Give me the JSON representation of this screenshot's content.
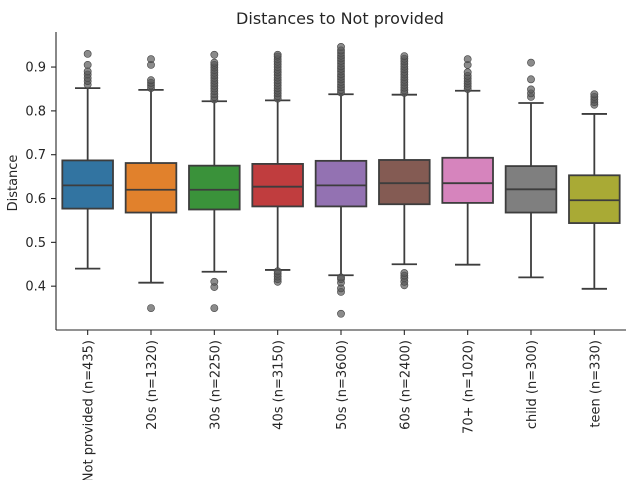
{
  "chart_data": {
    "type": "box",
    "title": "Distances to Not provided",
    "xlabel": "",
    "ylabel": "Distance",
    "ylim": [
      0.3,
      0.98
    ],
    "yticks": [
      0.4,
      0.5,
      0.6,
      0.7,
      0.8,
      0.9
    ],
    "grid": false,
    "categories": [
      "Not provided (n=435)",
      "20s (n=1320)",
      "30s (n=2250)",
      "40s (n=3150)",
      "50s (n=3600)",
      "60s (n=2400)",
      "70+ (n=1020)",
      "child (n=300)",
      "teen (n=330)"
    ],
    "colors": [
      "#3274a1",
      "#e1812c",
      "#3a923a",
      "#c03d3e",
      "#9372b2",
      "#845b53",
      "#d684bd",
      "#7f7f7f",
      "#a9aa35"
    ],
    "boxes": [
      {
        "whislo": 0.44,
        "q1": 0.577,
        "med": 0.63,
        "q3": 0.687,
        "whishi": 0.852,
        "fliers": [
          0.86,
          0.868,
          0.875,
          0.883,
          0.89,
          0.905,
          0.93
        ]
      },
      {
        "whislo": 0.408,
        "q1": 0.568,
        "med": 0.62,
        "q3": 0.681,
        "whishi": 0.848,
        "fliers": [
          0.35,
          0.852,
          0.858,
          0.864,
          0.87,
          0.905,
          0.918
        ]
      },
      {
        "whislo": 0.433,
        "q1": 0.575,
        "med": 0.62,
        "q3": 0.675,
        "whishi": 0.822,
        "fliers": [
          0.35,
          0.398,
          0.41,
          0.826,
          0.832,
          0.838,
          0.845,
          0.851,
          0.857,
          0.863,
          0.869,
          0.875,
          0.881,
          0.887,
          0.893,
          0.899,
          0.905,
          0.91,
          0.928
        ]
      },
      {
        "whislo": 0.437,
        "q1": 0.582,
        "med": 0.627,
        "q3": 0.679,
        "whishi": 0.824,
        "fliers": [
          0.41,
          0.416,
          0.422,
          0.428,
          0.434,
          0.828,
          0.834,
          0.84,
          0.846,
          0.852,
          0.858,
          0.864,
          0.87,
          0.876,
          0.882,
          0.888,
          0.894,
          0.9,
          0.906,
          0.912,
          0.918,
          0.924,
          0.928
        ]
      },
      {
        "whislo": 0.425,
        "q1": 0.582,
        "med": 0.63,
        "q3": 0.686,
        "whishi": 0.838,
        "fliers": [
          0.337,
          0.387,
          0.395,
          0.408,
          0.416,
          0.42,
          0.842,
          0.848,
          0.854,
          0.86,
          0.866,
          0.872,
          0.878,
          0.884,
          0.89,
          0.896,
          0.902,
          0.908,
          0.914,
          0.92,
          0.926,
          0.932,
          0.938,
          0.946
        ]
      },
      {
        "whislo": 0.45,
        "q1": 0.587,
        "med": 0.635,
        "q3": 0.688,
        "whishi": 0.837,
        "fliers": [
          0.402,
          0.41,
          0.418,
          0.424,
          0.43,
          0.841,
          0.847,
          0.853,
          0.859,
          0.865,
          0.871,
          0.877,
          0.883,
          0.889,
          0.895,
          0.901,
          0.907,
          0.913,
          0.919,
          0.925
        ]
      },
      {
        "whislo": 0.449,
        "q1": 0.59,
        "med": 0.635,
        "q3": 0.693,
        "whishi": 0.846,
        "fliers": [
          0.85,
          0.856,
          0.862,
          0.868,
          0.874,
          0.88,
          0.888,
          0.905,
          0.918
        ]
      },
      {
        "whislo": 0.42,
        "q1": 0.568,
        "med": 0.621,
        "q3": 0.674,
        "whishi": 0.818,
        "fliers": [
          0.832,
          0.84,
          0.849,
          0.872,
          0.91
        ]
      },
      {
        "whislo": 0.394,
        "q1": 0.544,
        "med": 0.596,
        "q3": 0.653,
        "whishi": 0.793,
        "fliers": [
          0.814,
          0.82,
          0.826,
          0.832,
          0.838
        ]
      }
    ]
  }
}
